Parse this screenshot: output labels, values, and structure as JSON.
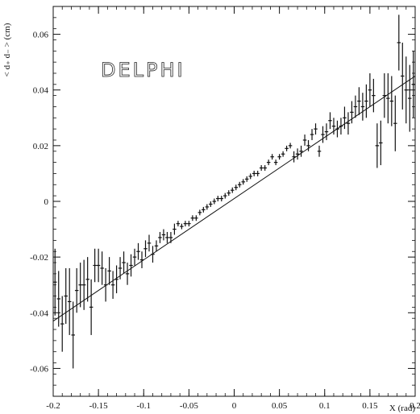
{
  "chart_data": {
    "type": "scatter",
    "title": "",
    "annotation": "DELPHI",
    "xlabel": "X (rad)",
    "ylabel": "< d₊ d₋ > (cm)",
    "xlim": [
      -0.2,
      0.2
    ],
    "ylim": [
      -0.07,
      0.07
    ],
    "xticks": [
      -0.2,
      -0.15,
      -0.1,
      -0.05,
      0,
      0.05,
      0.1,
      0.15,
      0.2
    ],
    "yticks": [
      -0.06,
      -0.04,
      -0.02,
      0,
      0.02,
      0.04,
      0.06
    ],
    "xtick_labels": [
      "-0.2",
      "-0.15",
      "-0.1",
      "-0.05",
      "0",
      "0.05",
      "0.1",
      "0.15",
      "0.2"
    ],
    "ytick_labels": [
      "-0.06",
      "-0.04",
      "-0.02",
      "0",
      "0.02",
      "0.04",
      "0.06"
    ],
    "grid": false,
    "fit_line": {
      "x": [
        -0.2,
        0.2
      ],
      "y": [
        -0.043,
        0.045
      ]
    },
    "series": [
      {
        "x": [
          -0.198,
          -0.194,
          -0.19,
          -0.186,
          -0.182,
          -0.178,
          -0.174,
          -0.17,
          -0.166,
          -0.162,
          -0.158,
          -0.154,
          -0.15,
          -0.146,
          -0.142,
          -0.138,
          -0.134,
          -0.13,
          -0.126,
          -0.122,
          -0.118,
          -0.114,
          -0.11,
          -0.106,
          -0.102,
          -0.098,
          -0.094,
          -0.09,
          -0.086,
          -0.082,
          -0.078,
          -0.074,
          -0.07,
          -0.066,
          -0.062,
          -0.058,
          -0.054,
          -0.05,
          -0.046,
          -0.042,
          -0.038,
          -0.034,
          -0.03,
          -0.026,
          -0.022,
          -0.018,
          -0.014,
          -0.01,
          -0.006,
          -0.002,
          0.002,
          0.006,
          0.01,
          0.014,
          0.018,
          0.022,
          0.026,
          0.03,
          0.034,
          0.038,
          0.042,
          0.046,
          0.05,
          0.054,
          0.058,
          0.062,
          0.066,
          0.07,
          0.074,
          0.078,
          0.082,
          0.086,
          0.09,
          0.094,
          0.098,
          0.102,
          0.106,
          0.11,
          0.114,
          0.118,
          0.122,
          0.126,
          0.13,
          0.134,
          0.138,
          0.142,
          0.146,
          0.15,
          0.154,
          0.158,
          0.162,
          0.166,
          0.17,
          0.174,
          0.178,
          0.182,
          0.186,
          0.19,
          0.194,
          0.198
        ],
        "y": [
          -0.029,
          -0.035,
          -0.044,
          -0.034,
          -0.036,
          -0.048,
          -0.032,
          -0.03,
          -0.03,
          -0.028,
          -0.038,
          -0.023,
          -0.023,
          -0.024,
          -0.03,
          -0.025,
          -0.03,
          -0.028,
          -0.024,
          -0.022,
          -0.026,
          -0.023,
          -0.02,
          -0.018,
          -0.021,
          -0.017,
          -0.015,
          -0.019,
          -0.016,
          -0.013,
          -0.012,
          -0.013,
          -0.013,
          -0.01,
          -0.008,
          -0.009,
          -0.008,
          -0.008,
          -0.006,
          -0.006,
          -0.004,
          -0.003,
          -0.002,
          -0.001,
          0.0,
          0.001,
          0.001,
          0.002,
          0.003,
          0.004,
          0.005,
          0.006,
          0.007,
          0.008,
          0.009,
          0.01,
          0.01,
          0.012,
          0.012,
          0.014,
          0.016,
          0.014,
          0.016,
          0.017,
          0.019,
          0.02,
          0.016,
          0.017,
          0.018,
          0.022,
          0.02,
          0.024,
          0.026,
          0.018,
          0.024,
          0.025,
          0.029,
          0.027,
          0.026,
          0.027,
          0.03,
          0.028,
          0.032,
          0.034,
          0.036,
          0.034,
          0.036,
          0.04,
          0.038,
          0.02,
          0.021,
          0.038,
          0.037,
          0.036,
          0.028,
          0.057,
          0.045,
          0.04,
          0.037,
          0.042
        ],
        "yerr": [
          0.012,
          0.01,
          0.01,
          0.01,
          0.012,
          0.012,
          0.008,
          0.008,
          0.009,
          0.008,
          0.01,
          0.006,
          0.006,
          0.006,
          0.006,
          0.005,
          0.005,
          0.005,
          0.004,
          0.004,
          0.004,
          0.004,
          0.003,
          0.003,
          0.003,
          0.003,
          0.003,
          0.003,
          0.002,
          0.002,
          0.002,
          0.002,
          0.002,
          0.002,
          0.001,
          0.001,
          0.001,
          0.001,
          0.001,
          0.001,
          0.001,
          0.001,
          0.001,
          0.001,
          0.001,
          0.001,
          0.001,
          0.001,
          0.001,
          0.001,
          0.001,
          0.001,
          0.001,
          0.001,
          0.001,
          0.001,
          0.001,
          0.001,
          0.001,
          0.001,
          0.001,
          0.001,
          0.001,
          0.001,
          0.001,
          0.001,
          0.002,
          0.002,
          0.002,
          0.002,
          0.002,
          0.002,
          0.002,
          0.002,
          0.003,
          0.003,
          0.003,
          0.003,
          0.003,
          0.003,
          0.004,
          0.004,
          0.004,
          0.004,
          0.005,
          0.005,
          0.006,
          0.006,
          0.006,
          0.008,
          0.008,
          0.008,
          0.009,
          0.009,
          0.01,
          0.01,
          0.012,
          0.012,
          0.012,
          0.012
        ]
      }
    ]
  }
}
